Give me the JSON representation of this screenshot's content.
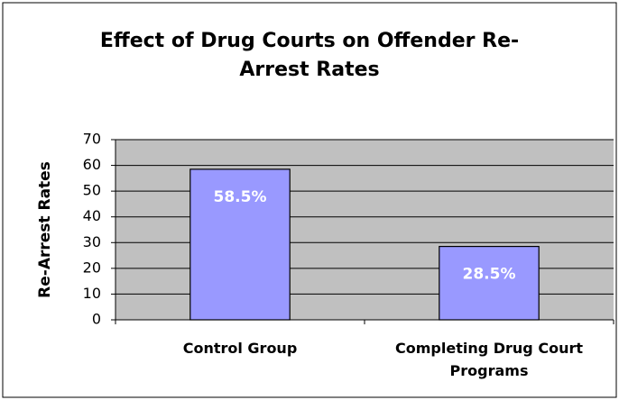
{
  "chart_data": {
    "type": "bar",
    "title": "Effect of Drug Courts on Offender Re-Arrest Rates",
    "y_label": "Re-Arrest Rates",
    "categories": [
      "Control Group",
      "Completing Drug Court Programs"
    ],
    "values": [
      58.5,
      28.5
    ],
    "value_labels": [
      "58.5%",
      "28.5%"
    ],
    "color": "#9999ff",
    "ylim": [
      0,
      70
    ],
    "yticks": [
      0,
      10,
      20,
      30,
      40,
      50,
      60,
      70
    ],
    "grid": true
  }
}
